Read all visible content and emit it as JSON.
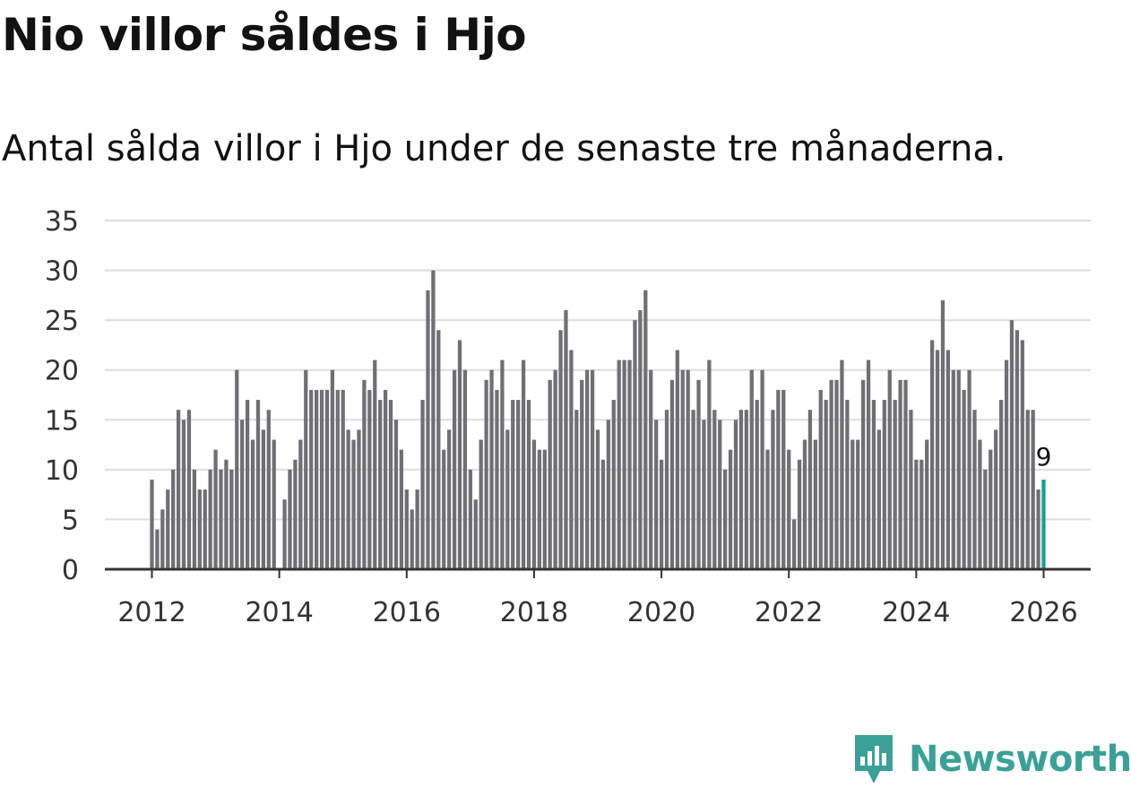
{
  "title": "Nio villor såldes i Hjo",
  "subtitle": "Antal sålda villor i Hjo under de senaste tre månaderna.",
  "brand": {
    "name": "Newsworthy"
  },
  "colors": {
    "bar": "#6f6f75",
    "highlight": "#1a9e94",
    "grid": "#dddddd",
    "axis": "#333333",
    "text": "#333333",
    "brand": "#3aa198"
  },
  "chart_data": {
    "type": "bar",
    "title": "Nio villor såldes i Hjo",
    "subtitle": "Antal sålda villor i Hjo under de senaste tre månaderna.",
    "xlabel": "",
    "ylabel": "",
    "ylim": [
      0,
      35
    ],
    "yticks": [
      0,
      5,
      10,
      15,
      20,
      25,
      30,
      35
    ],
    "xticks": [
      "2012",
      "2014",
      "2016",
      "2018",
      "2020",
      "2022",
      "2024",
      "2026"
    ],
    "x_start": "2012-01",
    "x_end": "2026-01",
    "grid": true,
    "highlight": {
      "index": 168,
      "label": "9"
    },
    "values": [
      9,
      4,
      6,
      8,
      10,
      16,
      15,
      16,
      10,
      8,
      8,
      10,
      12,
      10,
      11,
      10,
      20,
      15,
      17,
      13,
      17,
      14,
      16,
      13,
      0,
      7,
      10,
      11,
      13,
      20,
      18,
      18,
      18,
      18,
      20,
      18,
      18,
      14,
      13,
      14,
      19,
      18,
      21,
      17,
      18,
      17,
      15,
      12,
      8,
      6,
      8,
      17,
      28,
      30,
      24,
      12,
      14,
      20,
      23,
      20,
      10,
      7,
      13,
      19,
      20,
      18,
      21,
      14,
      17,
      17,
      21,
      17,
      13,
      12,
      12,
      19,
      20,
      24,
      26,
      22,
      16,
      19,
      20,
      20,
      14,
      11,
      15,
      17,
      21,
      21,
      21,
      25,
      26,
      28,
      20,
      15,
      11,
      16,
      19,
      22,
      20,
      20,
      16,
      19,
      15,
      21,
      16,
      15,
      10,
      12,
      15,
      16,
      16,
      20,
      17,
      20,
      12,
      16,
      18,
      18,
      12,
      5,
      11,
      13,
      16,
      13,
      18,
      17,
      19,
      19,
      21,
      17,
      13,
      13,
      19,
      21,
      17,
      14,
      17,
      20,
      17,
      19,
      19,
      16,
      11,
      11,
      13,
      23,
      22,
      27,
      22,
      20,
      20,
      18,
      20,
      16,
      13,
      10,
      12,
      14,
      17,
      21,
      25,
      24,
      23,
      16,
      16,
      8,
      9
    ]
  }
}
